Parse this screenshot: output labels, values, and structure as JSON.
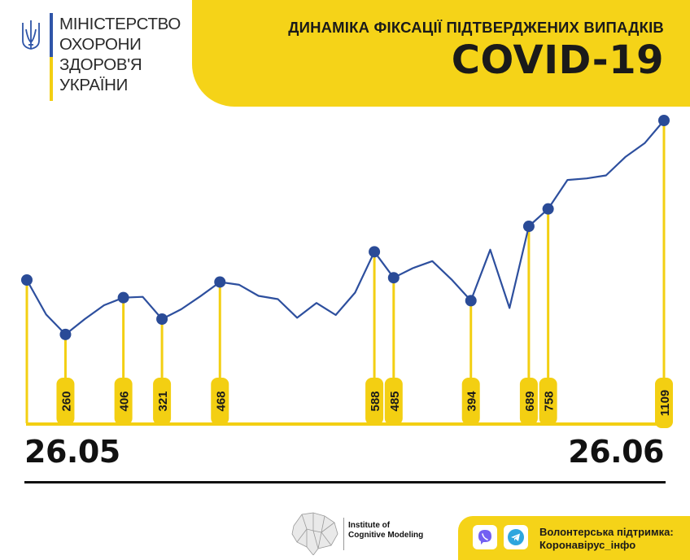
{
  "header": {
    "title": "ДИНАМІКА ФІКСАЦІЇ ПІДТВЕРДЖЕНИХ ВИПАДКІВ",
    "subtitle": "COVID-19"
  },
  "logo": {
    "lines": [
      "МІНІСТЕРСТВО",
      "ОХОРОНИ",
      "ЗДОРОВ'Я",
      "УКРАЇНИ"
    ],
    "icon": "trident-icon"
  },
  "colors": {
    "accent": "#f5d318",
    "line": "#2d4f9e",
    "point": "#2a4b97",
    "stem": "#f3cf12",
    "text": "#1a1a1a"
  },
  "chart_data": {
    "type": "line",
    "title": "ДИНАМІКА ФІКСАЦІЇ ПІДТВЕРДЖЕНИХ ВИПАДКІВ",
    "subtitle": "COVID-19",
    "xlabel": "",
    "ylabel": "",
    "x_start_label": "26.05",
    "x_end_label": "26.06",
    "grid": false,
    "legend": "none",
    "ylim": [
      0,
      1200
    ],
    "values": [
      476,
      339,
      260,
      321,
      376,
      406,
      409,
      321,
      360,
      412,
      468,
      457,
      413,
      400,
      326,
      385,
      337,
      426,
      588,
      485,
      523,
      551,
      478,
      394,
      596,
      365,
      689,
      758,
      873,
      879,
      891,
      964,
      1019,
      1109
    ],
    "labeled_points": [
      {
        "index": 0,
        "label": ""
      },
      {
        "index": 2,
        "label": "260"
      },
      {
        "index": 5,
        "label": "406"
      },
      {
        "index": 7,
        "label": "321"
      },
      {
        "index": 10,
        "label": "468"
      },
      {
        "index": 18,
        "label": "588"
      },
      {
        "index": 19,
        "label": "485"
      },
      {
        "index": 23,
        "label": "394"
      },
      {
        "index": 26,
        "label": "689"
      },
      {
        "index": 27,
        "label": "758"
      },
      {
        "index": 33,
        "label": "1109"
      }
    ]
  },
  "footer": {
    "institute_line1": "Institute of",
    "institute_line2": "Cognitive Modeling",
    "volunteer_line1": "Волонтерська підтримка:",
    "volunteer_line2": "Коронавірус_інфо",
    "icons": [
      "viber-icon",
      "telegram-icon"
    ]
  }
}
